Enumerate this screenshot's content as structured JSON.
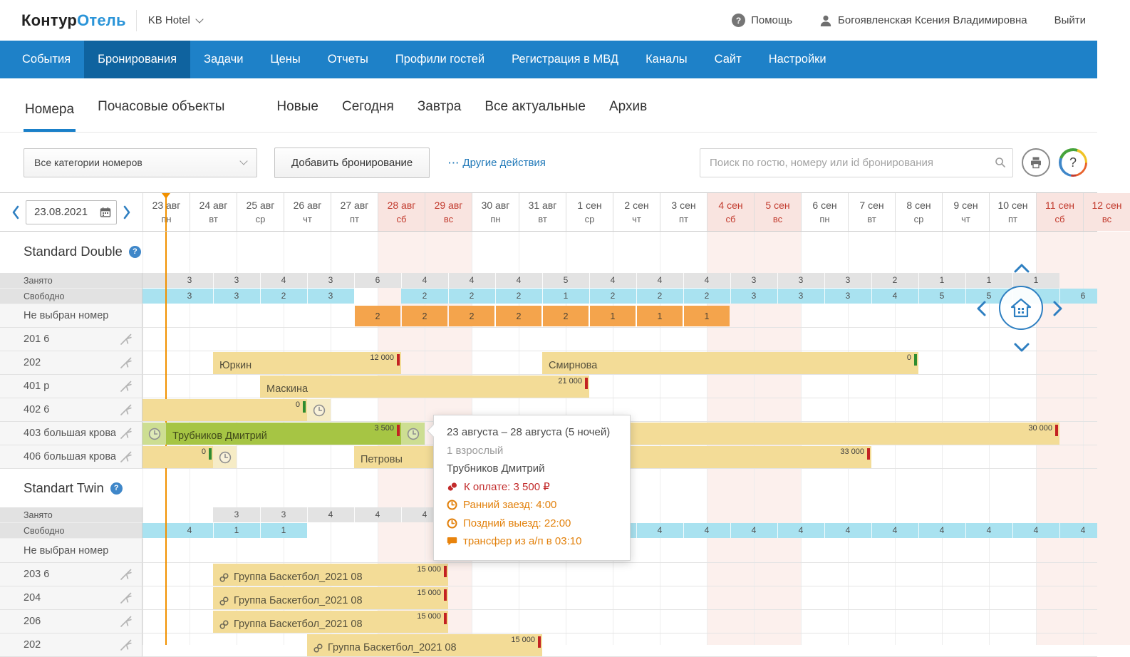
{
  "topbar": {
    "logo_black": "Контур",
    "logo_blue": "Отель",
    "hotel_name": "KB Hotel",
    "help_label": "Помощь",
    "user_name": "Богоявленская Ксения Владимировна",
    "logout_label": "Выйти"
  },
  "nav": {
    "items": [
      "События",
      "Бронирования",
      "Задачи",
      "Цены",
      "Отчеты",
      "Профили гостей",
      "Регистрация в МВД",
      "Каналы",
      "Сайт",
      "Настройки"
    ],
    "active_index": 1
  },
  "tabs": {
    "left": [
      "Номера",
      "Почасовые объекты"
    ],
    "right": [
      "Новые",
      "Сегодня",
      "Завтра",
      "Все актуальные",
      "Архив"
    ],
    "active": "Номера"
  },
  "toolbar": {
    "category_filter": "Все категории номеров",
    "add_booking": "Добавить бронирование",
    "more_prefix": "···",
    "more_actions": "Другие действия",
    "search_placeholder": "Поиск по гостю, номеру или id бронирования"
  },
  "calendar": {
    "picker_value": "23.08.2021",
    "days": [
      {
        "d": "23 авг",
        "w": "пн",
        "we": false
      },
      {
        "d": "24 авг",
        "w": "вт",
        "we": false
      },
      {
        "d": "25 авг",
        "w": "ср",
        "we": false
      },
      {
        "d": "26 авг",
        "w": "чт",
        "we": false
      },
      {
        "d": "27 авг",
        "w": "пт",
        "we": false
      },
      {
        "d": "28 авг",
        "w": "сб",
        "we": true
      },
      {
        "d": "29 авг",
        "w": "вс",
        "we": true
      },
      {
        "d": "30 авг",
        "w": "пн",
        "we": false
      },
      {
        "d": "31 авг",
        "w": "вт",
        "we": false
      },
      {
        "d": "1 сен",
        "w": "ср",
        "we": false
      },
      {
        "d": "2 сен",
        "w": "чт",
        "we": false
      },
      {
        "d": "3 сен",
        "w": "пт",
        "we": false
      },
      {
        "d": "4 сен",
        "w": "сб",
        "we": true
      },
      {
        "d": "5 сен",
        "w": "вс",
        "we": true
      },
      {
        "d": "6 сен",
        "w": "пн",
        "we": false
      },
      {
        "d": "7 сен",
        "w": "вт",
        "we": false
      },
      {
        "d": "8 сен",
        "w": "ср",
        "we": false
      },
      {
        "d": "9 сен",
        "w": "чт",
        "we": false
      },
      {
        "d": "10 сен",
        "w": "пт",
        "we": false
      },
      {
        "d": "11 сен",
        "w": "сб",
        "we": true
      },
      {
        "d": "12 сен",
        "w": "вс",
        "we": true
      }
    ]
  },
  "row_labels": {
    "busy": "Занято",
    "free": "Свободно",
    "unassigned": "Не выбран номер"
  },
  "sections": [
    {
      "title": "Standard Double",
      "busy": {
        "band": [
          200,
          1487
        ],
        "start": 0,
        "values": [
          "3",
          "3",
          "4",
          "3",
          "6",
          "4",
          "4",
          "4",
          "5",
          "4",
          "4",
          "4",
          "3",
          "3",
          "3",
          "2",
          "1",
          "1",
          "1"
        ]
      },
      "free": {
        "bands": [
          {
            "x": [
              200,
              497
            ],
            "start": 0,
            "values": [
              "3",
              "3",
              "2",
              "3"
            ]
          },
          {
            "x": [
              563,
              1540
            ],
            "start": 5,
            "values": [
              "2",
              "2",
              "2",
              "1",
              "2",
              "2",
              "2",
              "3",
              "3",
              "3",
              "4",
              "5",
              "5",
              "",
              "6"
            ]
          }
        ]
      },
      "unassigned": {
        "start": 4,
        "values": [
          "2",
          "2",
          "2",
          "2",
          "2",
          "1",
          "1",
          "1"
        ]
      },
      "rooms": [
        {
          "label": "201 6",
          "bookings": []
        },
        {
          "label": "202",
          "bookings": [
            {
              "guest": "Юркин",
              "start": 1,
              "end": 5,
              "amount": "12 000",
              "tick": "red"
            },
            {
              "guest": "Смирнова",
              "start": 8,
              "end": 16,
              "amount": "0",
              "tick": "green"
            }
          ]
        },
        {
          "label": "401 р",
          "bookings": [
            {
              "guest": "Маскина",
              "start": 2,
              "end": 9,
              "amount": "21 000",
              "tick": "red"
            }
          ]
        },
        {
          "label": "402 6",
          "bookings": [
            {
              "guest": "",
              "start": -0.5,
              "end": 3,
              "amount": "0",
              "tick": "green",
              "late": true
            }
          ]
        },
        {
          "label": "403 большая крова",
          "bookings": [
            {
              "guest": "Трубников Дмитрий",
              "start": 0,
              "end": 5,
              "amount": "3 500",
              "tick": "red",
              "early": true,
              "late": true,
              "selected": true
            },
            {
              "guest": "",
              "start": 6,
              "end": 19,
              "amount": "30 000",
              "tick": "red"
            }
          ]
        },
        {
          "label": "406 большая крова",
          "bookings": [
            {
              "guest": "",
              "start": -0.5,
              "end": 1,
              "amount": "0",
              "tick": "green",
              "late": true
            },
            {
              "guest": "Петровы",
              "start": 4,
              "end": 15,
              "amount": "33 000",
              "tick": "red"
            }
          ]
        }
      ]
    },
    {
      "title": "Standart Twin",
      "busy": {
        "band": [
          299,
          761
        ],
        "start": 1,
        "values": [
          "3",
          "3",
          "4",
          "4",
          "4"
        ]
      },
      "free": {
        "bands": [
          {
            "x": [
              200,
              431
            ],
            "start": 0,
            "values": [
              "4",
              "1",
              "1"
            ]
          },
          {
            "x": [
              827,
              1540
            ],
            "start": 10,
            "values": [
              "4",
              "4",
              "4",
              "4",
              "4",
              "4",
              "4",
              "4",
              "4",
              "4"
            ]
          }
        ]
      },
      "unassigned": {
        "start": 0,
        "values": []
      },
      "rooms": [
        {
          "label": "203 6",
          "bookings": [
            {
              "guest": "Группа Баскетбол_2021 08",
              "group_link": true,
              "start": 1,
              "end": 6,
              "amount": "15 000",
              "tick": "red"
            }
          ]
        },
        {
          "label": "204",
          "bookings": [
            {
              "guest": "Группа Баскетбол_2021 08",
              "group_link": true,
              "start": 1,
              "end": 6,
              "amount": "15 000",
              "tick": "red"
            }
          ]
        },
        {
          "label": "206",
          "bookings": [
            {
              "guest": "Группа Баскетбол_2021 08",
              "group_link": true,
              "start": 1,
              "end": 6,
              "amount": "15 000",
              "tick": "red"
            }
          ]
        },
        {
          "label": "202",
          "bookings": [
            {
              "guest": "Группа Баскетбол_2021 08",
              "group_link": true,
              "start": 3,
              "end": 8,
              "amount": "15 000",
              "tick": "red"
            }
          ]
        }
      ]
    }
  ],
  "tooltip": {
    "dates": "23 августа – 28 августа (5 ночей)",
    "guests": "1 взрослый",
    "guest_name": "Трубников Дмитрий",
    "payment": "К оплате: 3 500 ₽",
    "early_checkin": "Ранний заезд: 4:00",
    "late_checkout": "Поздний выезд: 22:00",
    "transfer": "трансфер из а/п в 03:10"
  },
  "icons": {
    "topbar_help": "question-circle",
    "user": "person",
    "hotel_dropdown": "chevron-down",
    "search": "magnifier",
    "print": "printer",
    "support": "question-ring",
    "date_picker": "calendar",
    "date_nav": "chevron-left/right",
    "section_help": "question-circle",
    "cleaning": "broom",
    "time_badge": "clock",
    "group": "chain-link",
    "payment": "coins",
    "transfer": "speech-bubble",
    "grid_nav": "house-grid + chevrons",
    "today": "orange-marker"
  },
  "colors": {
    "nav_blue": "#1e81c8",
    "nav_active": "#0f639f",
    "accent_blue": "#1a80c9",
    "free_cyan": "#a9e2f0",
    "busy_gray": "#e3e3e3",
    "unassigned_orange": "#f4a44c",
    "booking_yellow": "#f3dc97",
    "booking_selected": "#a6c544",
    "tick_red": "#c32222",
    "tick_green": "#2f8c2f",
    "today_orange": "#f19100",
    "weekend_bg": "#f9e4e0",
    "weekend_text": "#c23b2e"
  }
}
